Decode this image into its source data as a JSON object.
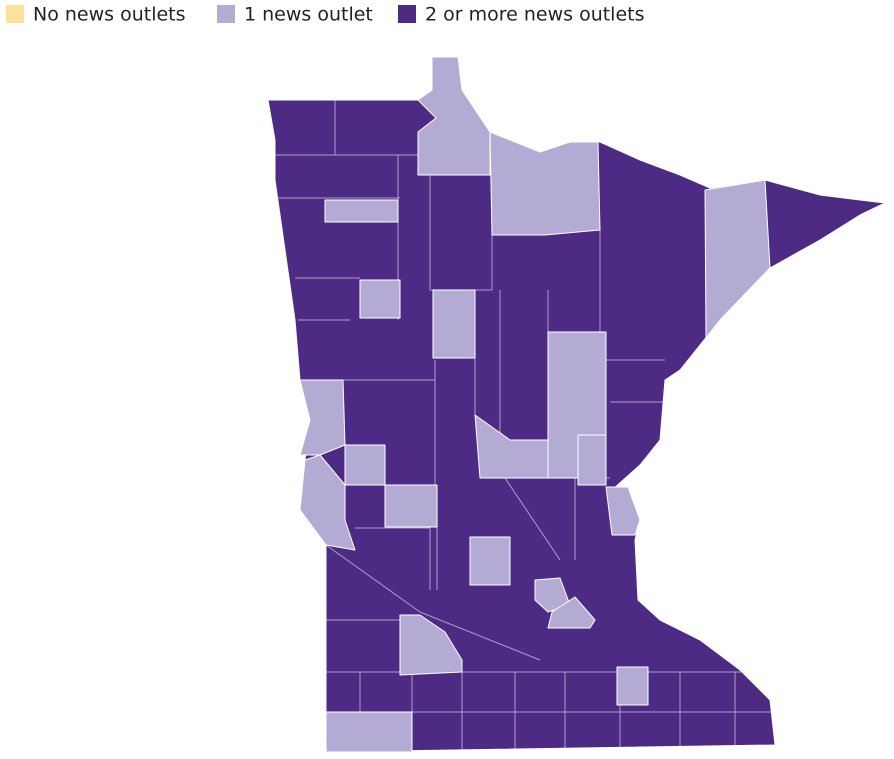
{
  "legend": [
    {
      "label": "No news outlets",
      "color": "#fde19a"
    },
    {
      "label": "1 news outlet",
      "color": "#b4abd4"
    },
    {
      "label": "2 or more news outlets",
      "color": "#4d2a84"
    }
  ]
}
